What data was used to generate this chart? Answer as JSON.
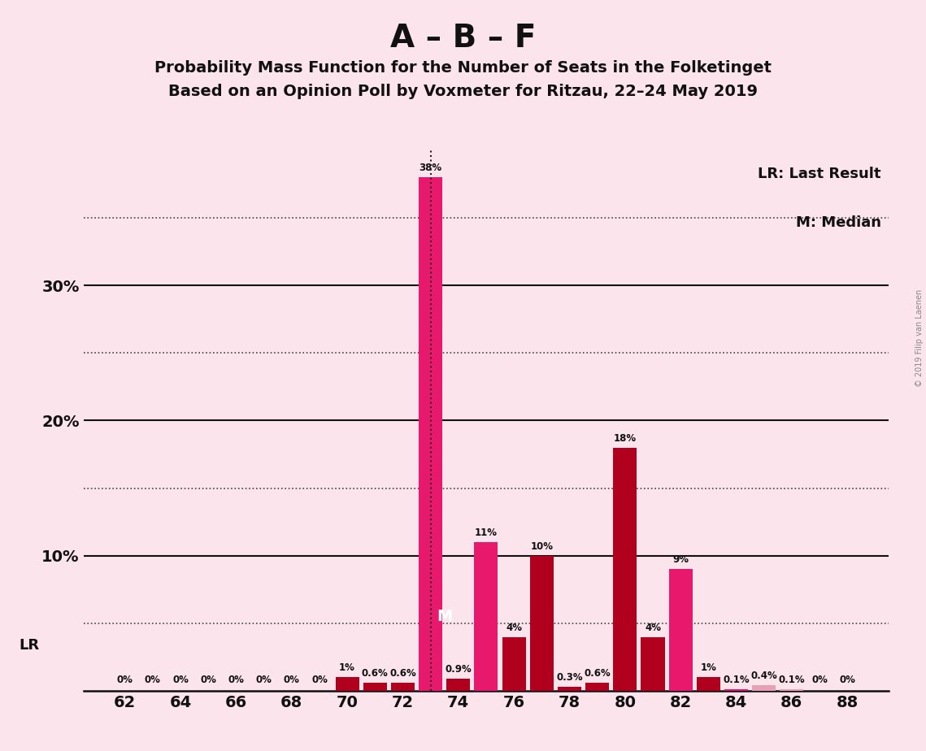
{
  "title_main": "A – B – F",
  "subtitle1": "Probability Mass Function for the Number of Seats in the Folketinget",
  "subtitle2": "Based on an Opinion Poll by Voxmeter for Ritzau, 22–24 May 2019",
  "legend_line1": "LR: Last Result",
  "legend_line2": "M: Median",
  "watermark": "© 2019 Filip van Laenen",
  "background_color": "#fce4ec",
  "seats": [
    62,
    63,
    64,
    65,
    66,
    67,
    68,
    69,
    70,
    71,
    72,
    73,
    74,
    75,
    76,
    77,
    78,
    79,
    80,
    81,
    82,
    83,
    84,
    85,
    86,
    87,
    88
  ],
  "values": [
    0.0,
    0.0,
    0.0,
    0.0,
    0.0,
    0.0,
    0.0,
    0.0,
    1.0,
    0.6,
    0.6,
    38.0,
    0.9,
    11.0,
    4.0,
    10.0,
    0.3,
    0.6,
    18.0,
    4.0,
    9.0,
    1.0,
    0.1,
    0.4,
    0.1,
    0.0,
    0.0
  ],
  "colors": [
    "#e8196c",
    "#e8196c",
    "#e8196c",
    "#e8196c",
    "#e8196c",
    "#e8196c",
    "#e8196c",
    "#e8196c",
    "#b0001e",
    "#b0001e",
    "#b0001e",
    "#e8196c",
    "#b0001e",
    "#e8196c",
    "#b0001e",
    "#b0001e",
    "#b0001e",
    "#b0001e",
    "#b0001e",
    "#b0001e",
    "#e8196c",
    "#b0001e",
    "#e8196c",
    "#e8a0b4",
    "#e8a0b4",
    "#e8196c",
    "#e8196c"
  ],
  "lr_seat": 73,
  "median_seat": 74,
  "ylim_max": 40,
  "bar_width": 0.85,
  "xtick_seats": [
    62,
    64,
    66,
    68,
    70,
    72,
    74,
    76,
    78,
    80,
    82,
    84,
    86,
    88
  ]
}
